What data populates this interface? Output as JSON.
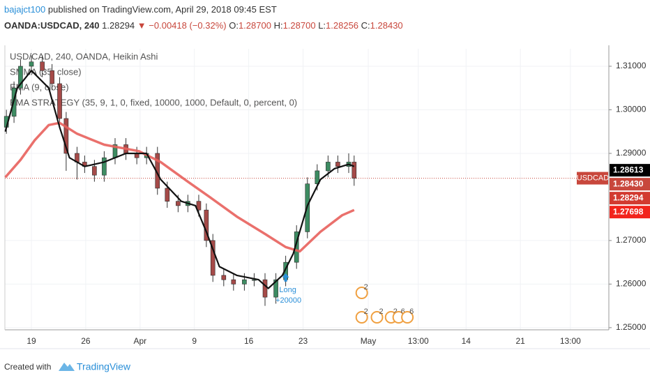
{
  "header": {
    "author": "bajajct100",
    "published": "published on TradingView.com, April 29, 2018 09:45 EST"
  },
  "quote": {
    "symbol": "OANDA:USDCAD, 240",
    "last": "1.28294",
    "arrow": "▼",
    "change": "−0.00418 (−0.32%)",
    "open_label": "O:",
    "open": "1.28700",
    "high_label": "H:",
    "high": "1.28700",
    "low_label": "L:",
    "low": "1.28256",
    "close_label": "C:",
    "close": "1.28430"
  },
  "chart_data": {
    "type": "candlestick",
    "title": "USD/CAD, 240, OANDA, Heikin Ashi",
    "strategy": "EMA STRATEGY (35, 9, 1, 0, fixed, 10000, 1000, Default, 0, percent, 0)",
    "up_color": "#3d8c62",
    "down_color": "#a54a48",
    "x": [
      -2.3,
      -1.6,
      -1.0,
      0.0,
      1.0,
      1.9,
      2.6,
      3.2,
      4.2,
      4.9,
      5.8,
      6.7,
      7.7,
      8.7,
      9.7,
      10.6,
      11.6,
      12.5,
      13.5,
      14.4,
      15.4,
      16.1,
      16.7,
      17.7,
      18.6,
      19.6,
      20.5,
      21.5,
      22.5,
      23.4,
      24.4,
      25.4,
      26.3,
      27.3,
      28.2,
      29.2,
      29.7
    ],
    "open": [
      1.296,
      1.2985,
      1.305,
      1.31,
      1.311,
      1.309,
      1.306,
      1.298,
      1.29,
      1.288,
      1.287,
      1.285,
      1.289,
      1.292,
      1.29,
      1.289,
      1.29,
      1.282,
      1.279,
      1.278,
      1.279,
      1.277,
      1.27,
      1.262,
      1.261,
      1.26,
      1.261,
      1.261,
      1.257,
      1.261,
      1.265,
      1.272,
      1.283,
      1.286,
      1.288,
      1.287,
      1.288
    ],
    "high": [
      1.3,
      1.3065,
      1.3115,
      1.3125,
      1.3125,
      1.3105,
      1.3075,
      1.2995,
      1.2915,
      1.2895,
      1.2885,
      1.2905,
      1.2935,
      1.2935,
      1.2915,
      1.2915,
      1.2915,
      1.2835,
      1.2805,
      1.2805,
      1.2805,
      1.2785,
      1.2715,
      1.2635,
      1.2625,
      1.2625,
      1.2625,
      1.2625,
      1.2625,
      1.2665,
      1.2735,
      1.2845,
      1.2875,
      1.2895,
      1.2895,
      1.29,
      1.2895
    ],
    "low": [
      1.2945,
      1.297,
      1.3035,
      1.3085,
      1.3075,
      1.3045,
      1.2965,
      1.286,
      1.284,
      1.2855,
      1.2835,
      1.2835,
      1.2875,
      1.2885,
      1.2875,
      1.2875,
      1.2805,
      1.2775,
      1.2765,
      1.2765,
      1.2755,
      1.2685,
      1.2605,
      1.2595,
      1.2585,
      1.2585,
      1.2595,
      1.255,
      1.2555,
      1.2595,
      1.2635,
      1.2705,
      1.2815,
      1.2845,
      1.2855,
      1.2855,
      1.28256
    ],
    "close": [
      1.2985,
      1.305,
      1.31,
      1.311,
      1.309,
      1.306,
      1.298,
      1.29,
      1.288,
      1.287,
      1.285,
      1.289,
      1.292,
      1.29,
      1.289,
      1.29,
      1.282,
      1.279,
      1.278,
      1.279,
      1.277,
      1.27,
      1.262,
      1.261,
      1.26,
      1.261,
      1.261,
      1.257,
      1.261,
      1.265,
      1.272,
      1.283,
      1.286,
      1.288,
      1.287,
      1.288,
      1.2843
    ],
    "series": [
      {
        "name": "SMMA (35, close)",
        "color": "#e8605c",
        "width": 3.5,
        "x": [
          -2.4,
          -1.0,
          0.3,
          1.6,
          2.6,
          4.2,
          6.7,
          9.9,
          11.9,
          14.4,
          16.4,
          18.9,
          21.5,
          23.4,
          24.7,
          26.6,
          28.6,
          29.7
        ],
        "values": [
          1.2845,
          1.2885,
          1.293,
          1.2965,
          1.297,
          1.2945,
          1.292,
          1.2905,
          1.288,
          1.2835,
          1.28,
          1.2755,
          1.2715,
          1.2685,
          1.2675,
          1.272,
          1.2758,
          1.277
        ]
      },
      {
        "name": "EMA (9, close)",
        "color": "#111111",
        "width": 2.2,
        "x": [
          -2.4,
          -1.3,
          0.0,
          1.6,
          2.6,
          3.5,
          4.9,
          6.7,
          8.7,
          10.6,
          11.9,
          13.8,
          15.1,
          16.1,
          17.3,
          18.9,
          20.9,
          21.8,
          23.1,
          24.1,
          25.4,
          26.6,
          27.9,
          29.2,
          29.7
        ],
        "values": [
          1.295,
          1.305,
          1.309,
          1.305,
          1.296,
          1.289,
          1.287,
          1.288,
          1.29,
          1.29,
          1.284,
          1.279,
          1.278,
          1.272,
          1.264,
          1.262,
          1.261,
          1.259,
          1.262,
          1.267,
          1.278,
          1.284,
          1.2865,
          1.2875,
          1.287
        ]
      }
    ],
    "xlim": [
      -2.44,
      53.14
    ],
    "ylim": [
      1.2495,
      1.314
    ],
    "yticks": [
      {
        "value": 1.25,
        "label": "1.25000"
      },
      {
        "value": 1.26,
        "label": "1.26000"
      },
      {
        "value": 1.27,
        "label": "1.27000"
      },
      {
        "value": 1.29,
        "label": "1.29000"
      },
      {
        "value": 1.3,
        "label": "1.30000"
      },
      {
        "value": 1.31,
        "label": "1.31000"
      }
    ],
    "xticks": [
      {
        "value": 0,
        "label": "19"
      },
      {
        "value": 5,
        "label": "26"
      },
      {
        "value": 10,
        "label": "Apr"
      },
      {
        "value": 15,
        "label": "9"
      },
      {
        "value": 20,
        "label": "16"
      },
      {
        "value": 25,
        "label": "23"
      },
      {
        "value": 31,
        "label": "May"
      },
      {
        "value": 35.6,
        "label": "13:00"
      },
      {
        "value": 40,
        "label": "14"
      },
      {
        "value": 45,
        "label": "21"
      },
      {
        "value": 49.6,
        "label": "13:00"
      }
    ],
    "grid": true,
    "symbol_tag": "USDCAD",
    "price_labels": [
      {
        "value": 1.28613,
        "color": "#000000"
      },
      {
        "value": 1.2843,
        "label": "1.28430",
        "color": "#c8473c"
      },
      {
        "value": 1.28294,
        "label": "1.28294",
        "color": "#d23a30"
      },
      {
        "value": 1.27698,
        "label": "1.27698",
        "color": "#f2241c"
      }
    ],
    "trade": {
      "x": 23.4,
      "price": 1.2612,
      "text": "Long",
      "amount": "+20000",
      "color": "#2a8fd8"
    },
    "events": [
      {
        "x": 30.4,
        "label": "2"
      },
      {
        "x": 30.4,
        "label": "2"
      },
      {
        "x": 31.8,
        "label": "2"
      },
      {
        "x": 33.1,
        "label": "2"
      },
      {
        "x": 33.8,
        "label": "6"
      },
      {
        "x": 34.6,
        "label": "6"
      }
    ]
  },
  "footer": {
    "created": "Created with",
    "brand": "TradingView"
  }
}
